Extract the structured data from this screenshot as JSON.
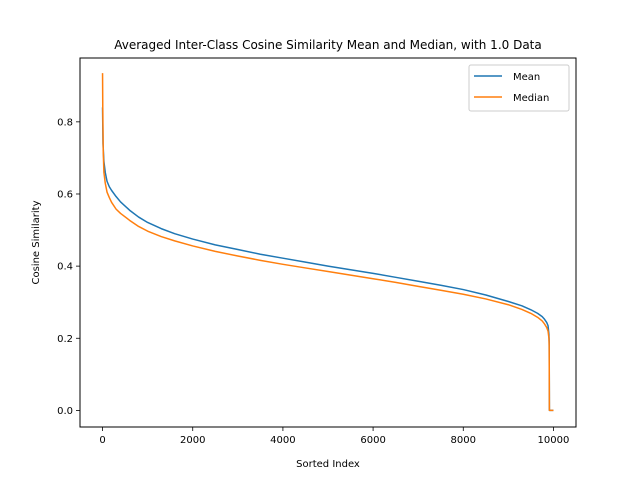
{
  "chart_data": {
    "type": "line",
    "title": "Averaged Inter-Class Cosine Similarity Mean and Median, with 1.0 Data",
    "xlabel": "Sorted Index",
    "ylabel": "Cosine Similarity",
    "xlim": [
      -500,
      10500
    ],
    "ylim": [
      -0.046,
      0.977
    ],
    "xticks": [
      0,
      2000,
      4000,
      6000,
      8000,
      10000
    ],
    "yticks": [
      0.0,
      0.2,
      0.4,
      0.6,
      0.8
    ],
    "xtick_labels": [
      "0",
      "2000",
      "4000",
      "6000",
      "8000",
      "10000"
    ],
    "ytick_labels": [
      "0.0",
      "0.2",
      "0.4",
      "0.6",
      "0.8"
    ],
    "legend_position": "top-right",
    "grid": false,
    "series": [
      {
        "name": "Mean",
        "color": "#1f77b4",
        "x": [
          0,
          10,
          30,
          60,
          100,
          150,
          200,
          300,
          400,
          600,
          800,
          1000,
          1300,
          1600,
          2000,
          2500,
          3000,
          3500,
          4000,
          4500,
          5000,
          5500,
          6000,
          6500,
          7000,
          7500,
          8000,
          8500,
          9000,
          9300,
          9500,
          9650,
          9750,
          9800,
          9850,
          9880,
          9900,
          9905,
          9910,
          9920,
          9935,
          9950,
          10000
        ],
        "y": [
          0.84,
          0.74,
          0.69,
          0.66,
          0.635,
          0.62,
          0.61,
          0.593,
          0.578,
          0.555,
          0.536,
          0.521,
          0.504,
          0.49,
          0.475,
          0.459,
          0.446,
          0.433,
          0.422,
          0.411,
          0.4,
          0.39,
          0.38,
          0.369,
          0.358,
          0.347,
          0.335,
          0.32,
          0.302,
          0.29,
          0.279,
          0.269,
          0.26,
          0.253,
          0.244,
          0.235,
          0.21,
          0.19,
          0.0,
          0.0,
          0.0,
          0.0,
          0.0
        ]
      },
      {
        "name": "Median",
        "color": "#ff7f0e",
        "x": [
          0,
          5,
          15,
          30,
          60,
          100,
          150,
          200,
          300,
          400,
          600,
          800,
          1000,
          1300,
          1600,
          2000,
          2500,
          3000,
          3500,
          4000,
          4500,
          5000,
          5500,
          6000,
          6500,
          7000,
          7500,
          8000,
          8500,
          9000,
          9300,
          9500,
          9650,
          9750,
          9800,
          9850,
          9880,
          9900,
          9905,
          9910,
          9920,
          9935,
          9950,
          10000
        ],
        "y": [
          0.935,
          0.84,
          0.72,
          0.66,
          0.63,
          0.605,
          0.59,
          0.577,
          0.558,
          0.546,
          0.527,
          0.51,
          0.497,
          0.482,
          0.47,
          0.456,
          0.441,
          0.428,
          0.416,
          0.405,
          0.395,
          0.385,
          0.375,
          0.365,
          0.355,
          0.344,
          0.333,
          0.322,
          0.309,
          0.293,
          0.28,
          0.269,
          0.258,
          0.248,
          0.24,
          0.23,
          0.22,
          0.2,
          0.18,
          0.0,
          0.0,
          0.0,
          0.0,
          0.0
        ]
      }
    ]
  }
}
